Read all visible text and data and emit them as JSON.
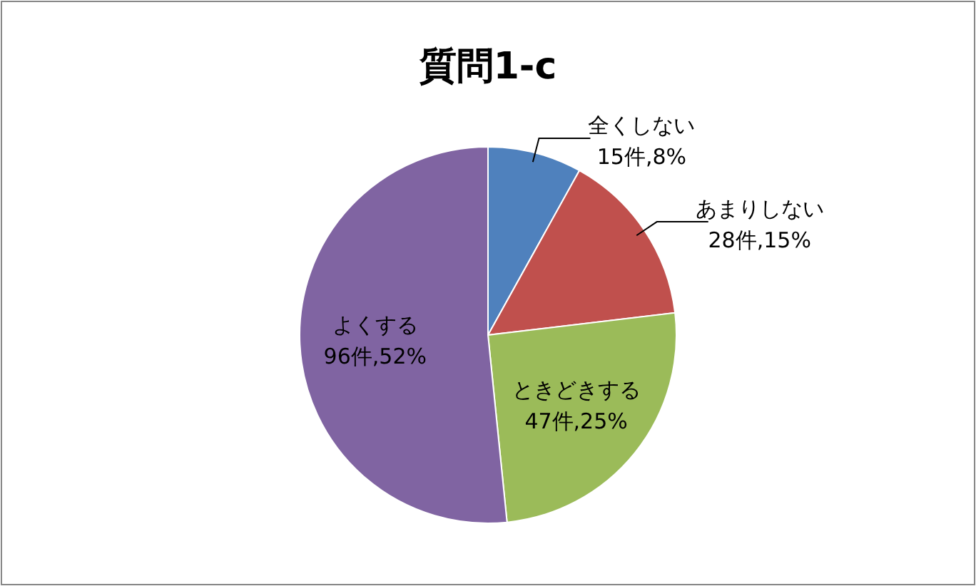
{
  "chart_data": {
    "type": "pie",
    "title": "質問1-c",
    "categories": [
      "全くしない",
      "あまりしない",
      "ときどきする",
      "よくする"
    ],
    "values": [
      15,
      28,
      47,
      96
    ],
    "value_labels": [
      "15件,8%",
      "28件,15%",
      "47件,25%",
      "96件,52%"
    ],
    "colors": [
      "#4f81bd",
      "#c0504d",
      "#9bbb59",
      "#8064a2"
    ],
    "legend": false
  }
}
